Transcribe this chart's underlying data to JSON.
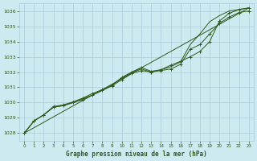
{
  "title": "Graphe pression niveau de la mer (hPa)",
  "bg_color": "#cdeaf0",
  "grid_color": "#aacdd8",
  "line_color": "#2d5a1b",
  "text_color": "#2d5a1b",
  "xlim": [
    -0.5,
    23.5
  ],
  "ylim": [
    1027.5,
    1036.5
  ],
  "yticks": [
    1028,
    1029,
    1030,
    1031,
    1032,
    1033,
    1034,
    1035,
    1036
  ],
  "xticks": [
    0,
    1,
    2,
    3,
    4,
    5,
    6,
    7,
    8,
    9,
    10,
    11,
    12,
    13,
    14,
    15,
    16,
    17,
    18,
    19,
    20,
    21,
    22,
    23
  ],
  "series": [
    {
      "x": [
        0,
        1,
        2,
        3,
        4,
        5,
        6,
        7,
        8,
        9,
        10,
        11,
        12,
        13,
        14,
        15,
        16,
        17,
        18,
        19,
        20,
        21,
        22,
        23
      ],
      "y": [
        1028.0,
        1028.8,
        1029.2,
        1029.7,
        1029.8,
        1030.0,
        1030.2,
        1030.5,
        1030.8,
        1031.1,
        1031.5,
        1031.9,
        1032.1,
        1032.0,
        1032.1,
        1032.2,
        1032.5,
        1033.5,
        1033.8,
        1034.5,
        1035.2,
        1035.6,
        1035.9,
        1036.0
      ],
      "has_markers": true
    },
    {
      "x": [
        0,
        1,
        2,
        3,
        4,
        5,
        6,
        7,
        8,
        9,
        10,
        11,
        12,
        13,
        14,
        15,
        16,
        17,
        18,
        19,
        20,
        21,
        22,
        23
      ],
      "y": [
        1028.0,
        1028.8,
        1029.2,
        1029.7,
        1029.8,
        1030.0,
        1030.25,
        1030.5,
        1030.8,
        1031.15,
        1031.6,
        1031.95,
        1032.2,
        1032.0,
        1032.15,
        1032.35,
        1032.65,
        1033.8,
        1034.5,
        1035.3,
        1035.7,
        1036.0,
        1036.1,
        1036.2
      ],
      "has_markers": false
    },
    {
      "x": [
        0,
        1,
        2,
        3,
        4,
        5,
        6,
        7,
        8,
        9,
        10,
        11,
        12,
        13,
        14,
        15,
        16,
        17,
        18,
        19,
        20,
        21,
        22,
        23
      ],
      "y": [
        1028.0,
        1028.8,
        1029.2,
        1029.75,
        1029.85,
        1030.05,
        1030.3,
        1030.6,
        1030.85,
        1031.15,
        1031.65,
        1032.0,
        1032.3,
        1032.05,
        1032.15,
        1032.45,
        1032.7,
        1033.0,
        1033.35,
        1034.0,
        1035.35,
        1035.85,
        1036.1,
        1036.2
      ],
      "has_markers": true
    },
    {
      "x": [
        0,
        23
      ],
      "y": [
        1028.0,
        1036.2
      ],
      "has_markers": false
    }
  ]
}
